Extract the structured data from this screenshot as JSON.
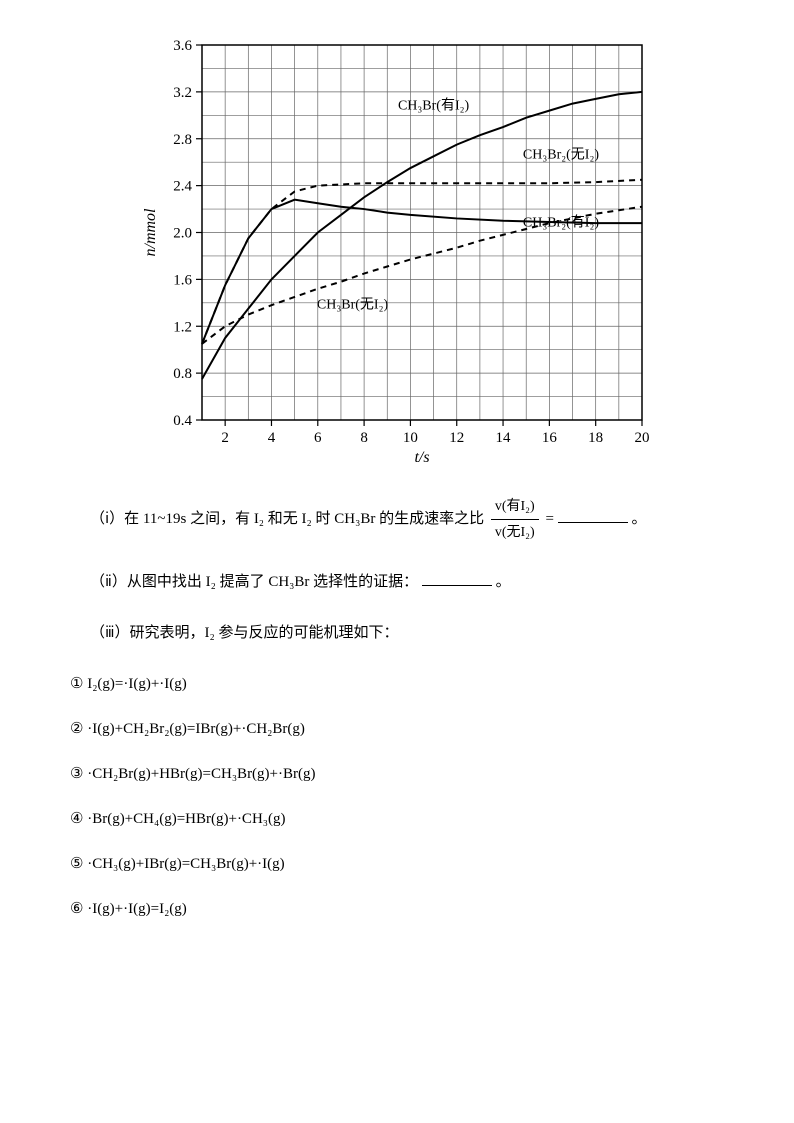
{
  "chart": {
    "type": "line",
    "xlabel": "t/s",
    "ylabel": "n/mmol",
    "xlabel_fontsize": 16,
    "ylabel_fontsize": 16,
    "xlim": [
      1,
      20
    ],
    "ylim": [
      0.4,
      3.6
    ],
    "xticks": [
      2,
      4,
      6,
      8,
      10,
      12,
      14,
      16,
      18,
      20
    ],
    "yticks": [
      0.4,
      0.8,
      1.2,
      1.6,
      2.0,
      2.4,
      2.8,
      3.2,
      3.6
    ],
    "tick_fontsize": 15,
    "background_color": "#ffffff",
    "grid_color": "#666666",
    "axis_color": "#000000",
    "line_color": "#000000",
    "line_width": 2,
    "series": [
      {
        "label": "CH₃Br(有I₂)",
        "style": "solid",
        "label_pos": {
          "x": 11,
          "y": 3.05
        },
        "points": [
          {
            "x": 1,
            "y": 0.75
          },
          {
            "x": 2,
            "y": 1.1
          },
          {
            "x": 3,
            "y": 1.35
          },
          {
            "x": 4,
            "y": 1.6
          },
          {
            "x": 5,
            "y": 1.8
          },
          {
            "x": 6,
            "y": 2.0
          },
          {
            "x": 7,
            "y": 2.15
          },
          {
            "x": 8,
            "y": 2.3
          },
          {
            "x": 9,
            "y": 2.43
          },
          {
            "x": 10,
            "y": 2.55
          },
          {
            "x": 11,
            "y": 2.65
          },
          {
            "x": 12,
            "y": 2.75
          },
          {
            "x": 13,
            "y": 2.83
          },
          {
            "x": 14,
            "y": 2.9
          },
          {
            "x": 15,
            "y": 2.98
          },
          {
            "x": 16,
            "y": 3.04
          },
          {
            "x": 17,
            "y": 3.1
          },
          {
            "x": 18,
            "y": 3.14
          },
          {
            "x": 19,
            "y": 3.18
          },
          {
            "x": 20,
            "y": 3.2
          }
        ]
      },
      {
        "label": "CH₃Br₂(无I₂)",
        "style": "dashed",
        "label_pos": {
          "x": 16.5,
          "y": 2.63
        },
        "points": [
          {
            "x": 1,
            "y": 1.05
          },
          {
            "x": 2,
            "y": 1.55
          },
          {
            "x": 3,
            "y": 1.95
          },
          {
            "x": 4,
            "y": 2.2
          },
          {
            "x": 5,
            "y": 2.35
          },
          {
            "x": 6,
            "y": 2.4
          },
          {
            "x": 7,
            "y": 2.41
          },
          {
            "x": 8,
            "y": 2.42
          },
          {
            "x": 9,
            "y": 2.42
          },
          {
            "x": 10,
            "y": 2.42
          },
          {
            "x": 12,
            "y": 2.42
          },
          {
            "x": 14,
            "y": 2.42
          },
          {
            "x": 16,
            "y": 2.42
          },
          {
            "x": 18,
            "y": 2.43
          },
          {
            "x": 20,
            "y": 2.45
          }
        ]
      },
      {
        "label": "CH₃Br(无I₂)",
        "style": "solid",
        "label_pos": {
          "x": 7.5,
          "y": 1.35
        },
        "points": [
          {
            "x": 1,
            "y": 1.05
          },
          {
            "x": 2,
            "y": 1.55
          },
          {
            "x": 3,
            "y": 1.95
          },
          {
            "x": 4,
            "y": 2.2
          },
          {
            "x": 5,
            "y": 2.28
          },
          {
            "x": 6,
            "y": 2.25
          },
          {
            "x": 7,
            "y": 2.22
          },
          {
            "x": 8,
            "y": 2.2
          },
          {
            "x": 9,
            "y": 2.17
          },
          {
            "x": 10,
            "y": 2.15
          },
          {
            "x": 12,
            "y": 2.12
          },
          {
            "x": 14,
            "y": 2.1
          },
          {
            "x": 16,
            "y": 2.09
          },
          {
            "x": 18,
            "y": 2.08
          },
          {
            "x": 20,
            "y": 2.08
          }
        ]
      },
      {
        "label": "CH₃Br₂(有I₂)",
        "style": "dashed",
        "label_pos": {
          "x": 16.5,
          "y": 2.05
        },
        "points": [
          {
            "x": 1,
            "y": 1.05
          },
          {
            "x": 2,
            "y": 1.2
          },
          {
            "x": 3,
            "y": 1.3
          },
          {
            "x": 4,
            "y": 1.38
          },
          {
            "x": 5,
            "y": 1.45
          },
          {
            "x": 6,
            "y": 1.52
          },
          {
            "x": 7,
            "y": 1.58
          },
          {
            "x": 8,
            "y": 1.65
          },
          {
            "x": 9,
            "y": 1.71
          },
          {
            "x": 10,
            "y": 1.77
          },
          {
            "x": 11,
            "y": 1.82
          },
          {
            "x": 12,
            "y": 1.87
          },
          {
            "x": 13,
            "y": 1.93
          },
          {
            "x": 14,
            "y": 1.98
          },
          {
            "x": 15,
            "y": 2.03
          },
          {
            "x": 16,
            "y": 2.08
          },
          {
            "x": 17,
            "y": 2.12
          },
          {
            "x": 18,
            "y": 2.16
          },
          {
            "x": 19,
            "y": 2.19
          },
          {
            "x": 20,
            "y": 2.22
          }
        ]
      }
    ]
  },
  "q1": {
    "prefix": "（ⅰ）在 11~19s 之间，有 I₂ 和无 I₂ 时 CH₃Br 的生成速率之比",
    "frac_num": "v(有I₂)",
    "frac_den": "v(无I₂)",
    "equals": "=",
    "period": "。"
  },
  "q2": {
    "text": "（ⅱ）从图中找出 I₂ 提高了 CH₃Br 选择性的证据：",
    "period": "。"
  },
  "q3": {
    "text": "（ⅲ）研究表明，I₂ 参与反应的可能机理如下："
  },
  "reactions": {
    "r1": "① I₂(g)=·I(g)+·I(g)",
    "r2": "② ·I(g)+CH₂Br₂(g)=IBr(g)+·CH₂Br(g)",
    "r3": "③ ·CH₂Br(g)+HBr(g)=CH₃Br(g)+·Br(g)",
    "r4": "④ ·Br(g)+CH₄(g)=HBr(g)+·CH₃(g)",
    "r5": "⑤ ·CH₃(g)+IBr(g)=CH₃Br(g)+·I(g)",
    "r6": "⑥ ·I(g)+·I(g)=I₂(g)"
  }
}
